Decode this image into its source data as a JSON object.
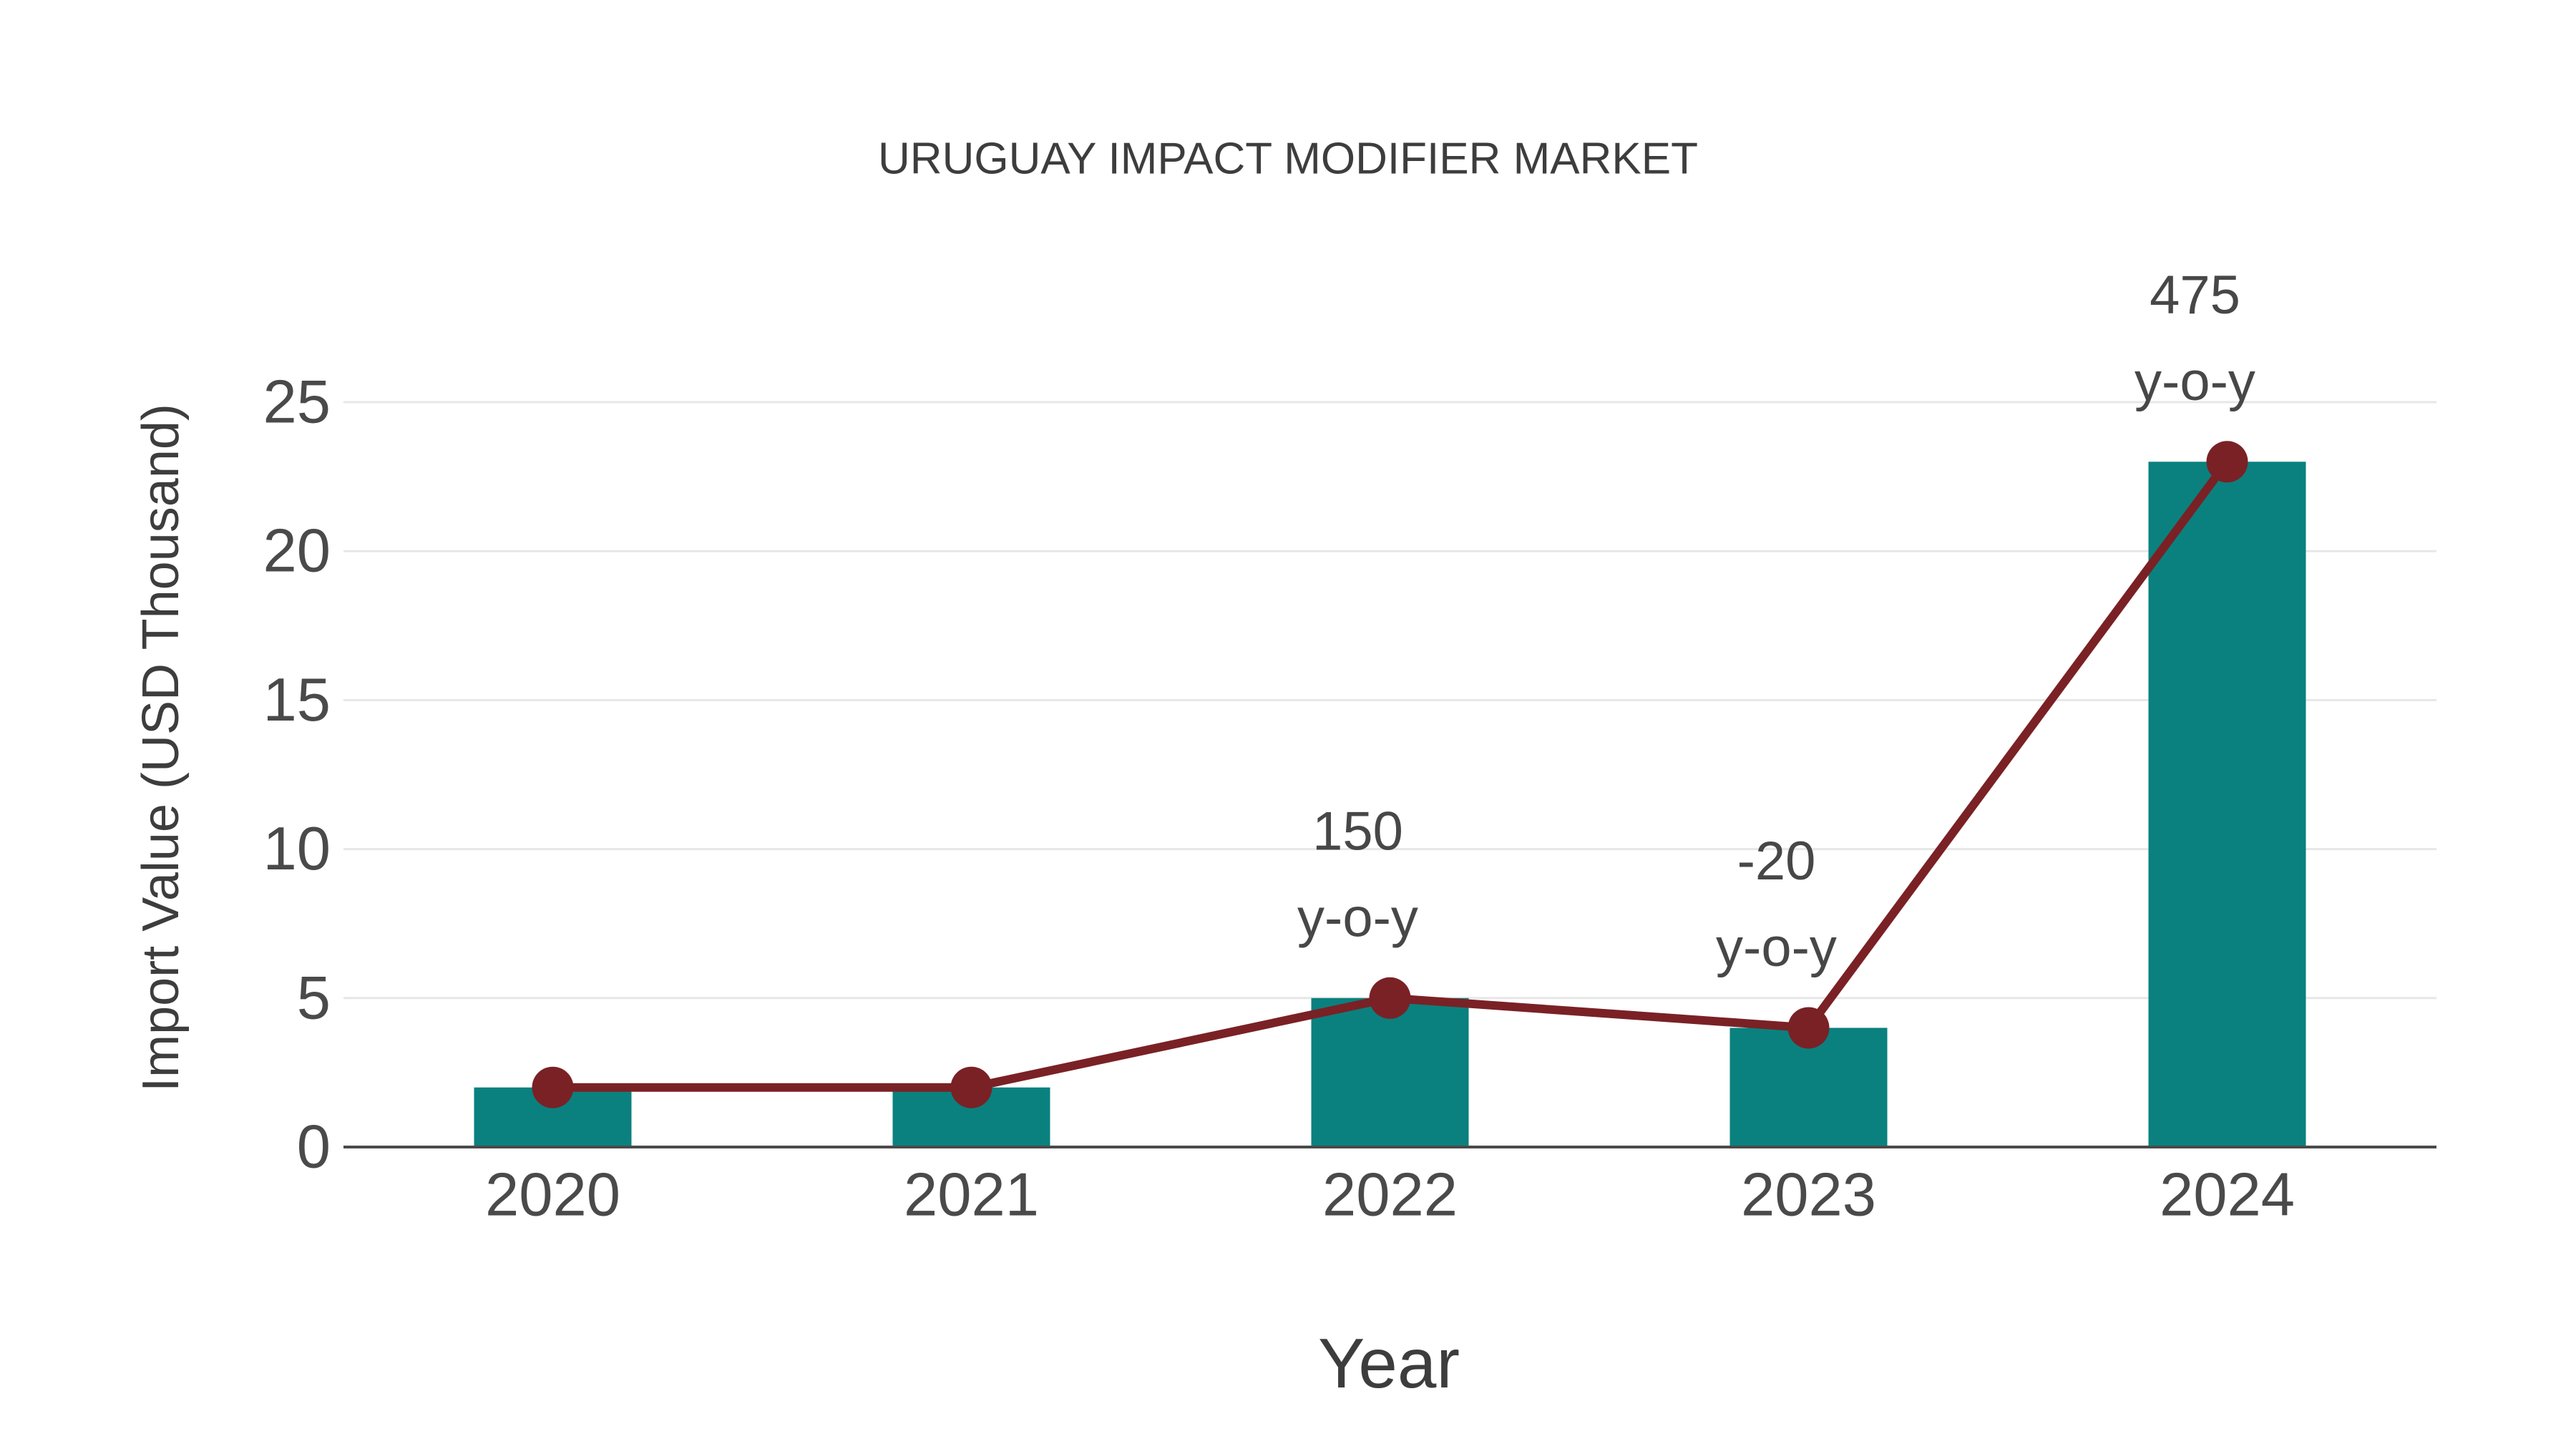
{
  "chart_data": {
    "type": "bar",
    "title": "URUGUAY IMPACT MODIFIER MARKET",
    "xlabel": "Year",
    "ylabel": "Import Value (USD Thousand)",
    "categories": [
      "2020",
      "2021",
      "2022",
      "2023",
      "2024"
    ],
    "series": [
      {
        "name": "Import Value (USD Thousand)",
        "type": "bar",
        "values": [
          2,
          2,
          5,
          4,
          23
        ],
        "color": "#0a817f"
      },
      {
        "name": "Import Value trend",
        "type": "line",
        "values": [
          2,
          2,
          5,
          4,
          23
        ],
        "color": "#7a2125"
      }
    ],
    "annotations": [
      {
        "category": "2022",
        "lines": [
          "150",
          "y-o-y"
        ]
      },
      {
        "category": "2023",
        "lines": [
          "-20",
          "y-o-y"
        ]
      },
      {
        "category": "2024",
        "lines": [
          "475",
          "y-o-y"
        ]
      }
    ],
    "ylim": [
      0,
      25
    ],
    "yticks": [
      0,
      5,
      10,
      15,
      20,
      25
    ],
    "grid": true,
    "legend_position": "none",
    "colors": {
      "bar": "#0a817f",
      "line": "#7a2125",
      "marker": "#7a2125",
      "grid": "#e7e7e7",
      "axis_line": "#4a4a4a",
      "tick_text": "#4a4a4a",
      "label_text": "#3d3d3d",
      "annotation_text": "#474747",
      "background": "#ffffff"
    }
  }
}
